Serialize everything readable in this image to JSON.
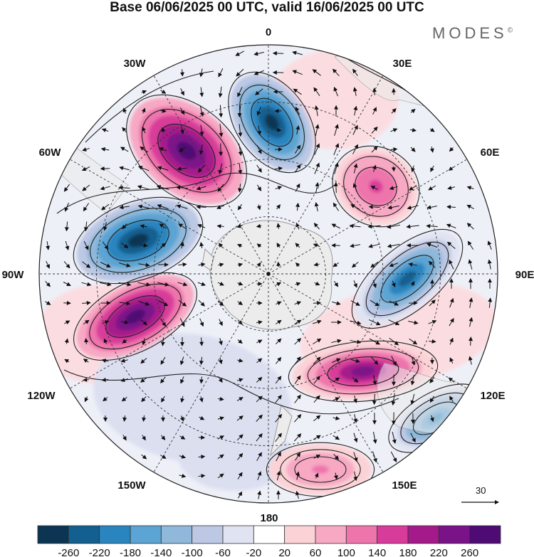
{
  "title": "Base 06/06/2025 00 UTC, valid 16/06/2025 00 UTC",
  "brand": "MODES",
  "brand_mark": "©",
  "map": {
    "projection": "south polar stereographic",
    "longitude_labels": [
      "0",
      "30E",
      "60E",
      "90E",
      "120E",
      "150E",
      "180",
      "150W",
      "120W",
      "90W",
      "60W",
      "30W"
    ],
    "reference_vector_value": "30",
    "colors": {
      "land": "#ececec",
      "land_outline": "#9a9a9a",
      "graticule": "#333333"
    },
    "anomaly_features": [
      {
        "sign": "positive",
        "level": 260,
        "region": "south atlantic, west of 0"
      },
      {
        "sign": "negative",
        "level": -260,
        "region": "near 0 meridian"
      },
      {
        "sign": "negative",
        "level": -260,
        "region": "southeast pacific / drake passage"
      },
      {
        "sign": "positive",
        "level": 260,
        "region": "south pacific near 100W"
      },
      {
        "sign": "positive",
        "level": 140,
        "region": "south of africa, 45E"
      },
      {
        "sign": "negative",
        "level": -220,
        "region": "southern indian ocean, 80E"
      },
      {
        "sign": "positive",
        "level": 220,
        "region": "southern ocean, 130E"
      },
      {
        "sign": "negative",
        "level": -180,
        "region": "south of australia"
      },
      {
        "sign": "positive",
        "level": 100,
        "region": "tasman sea / new zealand"
      }
    ]
  },
  "colorbar": {
    "tick_labels": [
      "-260",
      "-220",
      "-180",
      "-140",
      "-100",
      "-60",
      "-20",
      "20",
      "60",
      "100",
      "140",
      "180",
      "220",
      "260"
    ],
    "colors": [
      "#0b3552",
      "#135f8f",
      "#2a85bf",
      "#5ba4d3",
      "#8fb8da",
      "#bcc8e4",
      "#e0e3f1",
      "#ffffff",
      "#fbd3d7",
      "#f7a9c4",
      "#ee75ac",
      "#d83c9a",
      "#a51a8a",
      "#7a1288",
      "#4d0b73"
    ]
  }
}
